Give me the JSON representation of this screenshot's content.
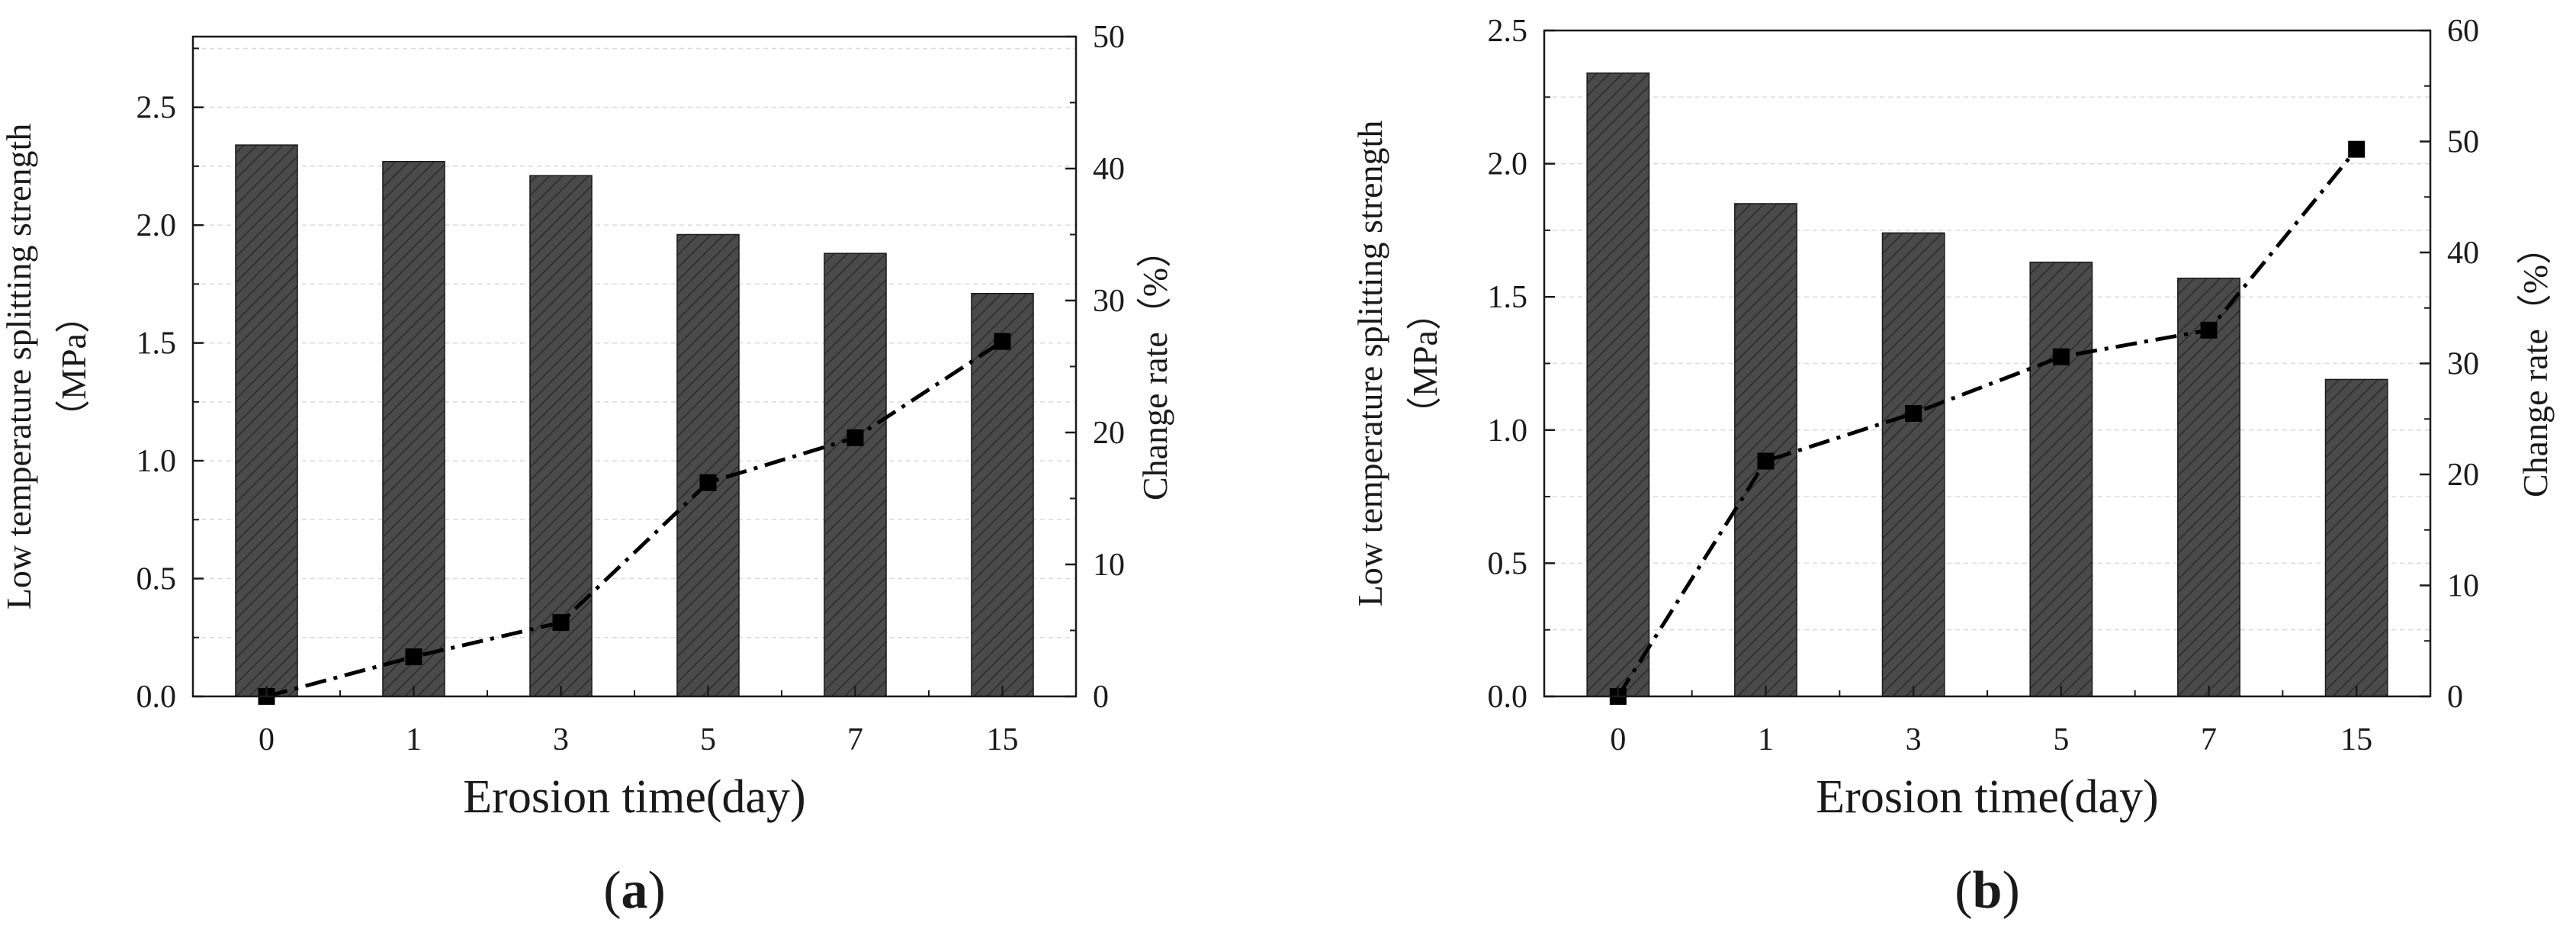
{
  "figure": {
    "panels": [
      "a",
      "b"
    ]
  },
  "chart_data": [
    {
      "panel_label": "a",
      "type": "bar+line",
      "title": "",
      "categories": [
        "0",
        "1",
        "3",
        "5",
        "7",
        "15"
      ],
      "xlabel": "Erosion time(day)",
      "ylabel_line1": "Low temperature splitting strength",
      "ylabel_line2": "（MPa）",
      "y2label": "Change rate（%）",
      "ylim": [
        0,
        2.8
      ],
      "y2lim": [
        0,
        50
      ],
      "yticks": [
        "0.0",
        "0.5",
        "1.0",
        "1.5",
        "2.0",
        "2.5"
      ],
      "y2ticks": [
        "0",
        "10",
        "20",
        "30",
        "40",
        "50"
      ],
      "grid": true,
      "series": [
        {
          "name": "Low temperature splitting strength",
          "kind": "bar",
          "axis": "left",
          "color": "#4a4a4a",
          "values": [
            2.34,
            2.27,
            2.21,
            1.96,
            1.88,
            1.71
          ]
        },
        {
          "name": "Change rate",
          "kind": "line",
          "axis": "right",
          "style": "dash-dot",
          "marker": "square",
          "color": "#000000",
          "values": [
            0,
            3,
            5.6,
            16.2,
            19.6,
            26.9
          ]
        }
      ]
    },
    {
      "panel_label": "b",
      "type": "bar+line",
      "title": "",
      "categories": [
        "0",
        "1",
        "3",
        "5",
        "7",
        "15"
      ],
      "xlabel": "Erosion time(day)",
      "ylabel_line1": "Low temperature splitting strength",
      "ylabel_line2": "（MPa）",
      "y2label": "Change rate（%）",
      "ylim": [
        0,
        2.5
      ],
      "y2lim": [
        0,
        60
      ],
      "yticks": [
        "0.0",
        "0.5",
        "1.0",
        "1.5",
        "2.0",
        "2.5"
      ],
      "y2ticks": [
        "0",
        "10",
        "20",
        "30",
        "40",
        "50",
        "60"
      ],
      "grid": true,
      "series": [
        {
          "name": "Low temperature splitting strength",
          "kind": "bar",
          "axis": "left",
          "color": "#4a4a4a",
          "values": [
            2.34,
            1.85,
            1.74,
            1.63,
            1.57,
            1.19
          ]
        },
        {
          "name": "Change rate",
          "kind": "line",
          "axis": "right",
          "style": "dash-dot",
          "marker": "square",
          "color": "#000000",
          "values": [
            0,
            21.2,
            25.5,
            30.6,
            33.0,
            49.3
          ]
        }
      ]
    }
  ]
}
